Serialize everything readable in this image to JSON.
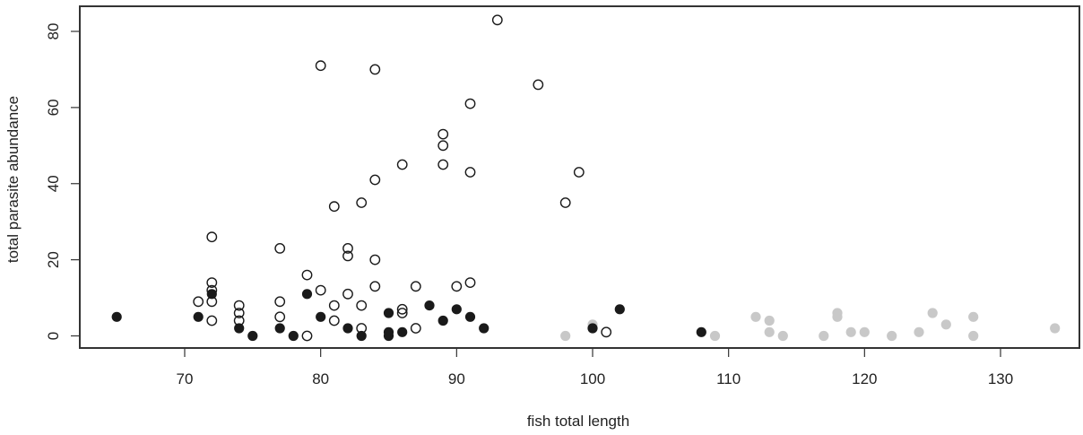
{
  "chart_data": {
    "type": "scatter",
    "title": "",
    "xlabel": "fish total length",
    "ylabel": "total parasite abundance",
    "xlim": [
      62.3,
      135.9
    ],
    "ylim": [
      -3.2,
      86.4
    ],
    "x_ticks": [
      70,
      80,
      90,
      100,
      110,
      120,
      130
    ],
    "y_ticks": [
      0,
      20,
      40,
      60,
      80
    ],
    "grid": false,
    "legend": null,
    "series": [
      {
        "name": "open-circles",
        "marker": "open-circle",
        "color": "#1a1a1a",
        "points": [
          [
            71,
            9
          ],
          [
            72,
            26
          ],
          [
            72,
            14
          ],
          [
            72,
            12
          ],
          [
            72,
            9
          ],
          [
            72,
            4
          ],
          [
            74,
            8
          ],
          [
            74,
            6
          ],
          [
            74,
            4
          ],
          [
            77,
            23
          ],
          [
            77,
            9
          ],
          [
            77,
            5
          ],
          [
            79,
            16
          ],
          [
            79,
            0
          ],
          [
            80,
            71
          ],
          [
            80,
            12
          ],
          [
            81,
            34
          ],
          [
            81,
            8
          ],
          [
            81,
            4
          ],
          [
            82,
            23
          ],
          [
            82,
            21
          ],
          [
            82,
            11
          ],
          [
            83,
            35
          ],
          [
            83,
            8
          ],
          [
            83,
            2
          ],
          [
            84,
            70
          ],
          [
            84,
            41
          ],
          [
            84,
            20
          ],
          [
            84,
            13
          ],
          [
            86,
            45
          ],
          [
            86,
            7
          ],
          [
            86,
            6
          ],
          [
            87,
            13
          ],
          [
            87,
            2
          ],
          [
            89,
            53
          ],
          [
            89,
            50
          ],
          [
            89,
            45
          ],
          [
            90,
            13
          ],
          [
            91,
            61
          ],
          [
            91,
            43
          ],
          [
            91,
            14
          ],
          [
            93,
            83
          ],
          [
            96,
            66
          ],
          [
            98,
            35
          ],
          [
            99,
            43
          ],
          [
            101,
            1
          ]
        ]
      },
      {
        "name": "filled-black",
        "marker": "filled-circle",
        "color": "#1a1a1a",
        "points": [
          [
            65,
            5
          ],
          [
            71,
            5
          ],
          [
            72,
            11
          ],
          [
            74,
            2
          ],
          [
            75,
            0
          ],
          [
            77,
            2
          ],
          [
            78,
            0
          ],
          [
            79,
            11
          ],
          [
            80,
            5
          ],
          [
            82,
            2
          ],
          [
            83,
            0
          ],
          [
            85,
            6
          ],
          [
            85,
            1
          ],
          [
            85,
            0
          ],
          [
            86,
            1
          ],
          [
            88,
            8
          ],
          [
            89,
            4
          ],
          [
            90,
            7
          ],
          [
            91,
            5
          ],
          [
            92,
            2
          ],
          [
            100,
            2
          ],
          [
            102,
            7
          ],
          [
            108,
            1
          ]
        ]
      },
      {
        "name": "filled-gray",
        "marker": "filled-circle",
        "color": "#c8c8c8",
        "points": [
          [
            98,
            0
          ],
          [
            100,
            3
          ],
          [
            109,
            0
          ],
          [
            112,
            5
          ],
          [
            113,
            4
          ],
          [
            113,
            1
          ],
          [
            114,
            0
          ],
          [
            117,
            0
          ],
          [
            118,
            6
          ],
          [
            118,
            5
          ],
          [
            119,
            1
          ],
          [
            120,
            1
          ],
          [
            122,
            0
          ],
          [
            124,
            1
          ],
          [
            125,
            6
          ],
          [
            126,
            3
          ],
          [
            128,
            5
          ],
          [
            128,
            0
          ],
          [
            134,
            2
          ]
        ]
      }
    ]
  }
}
